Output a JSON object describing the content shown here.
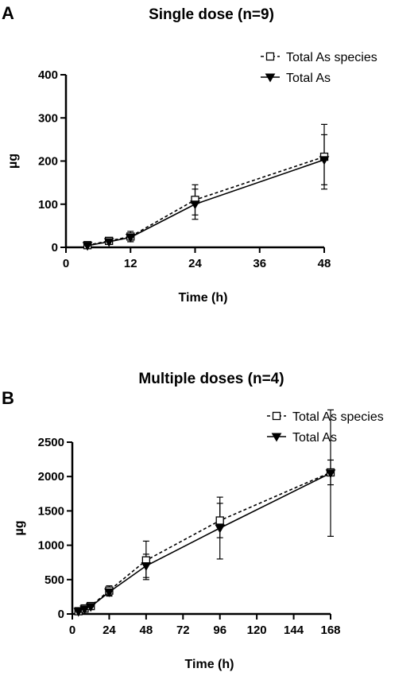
{
  "chart_data": [
    {
      "type": "line",
      "panel": "A",
      "title": "Single dose (n=9)",
      "xlabel": "Time (h)",
      "ylabel": "µg",
      "xlim": [
        0,
        48
      ],
      "ylim": [
        0,
        400
      ],
      "xticks": [
        0,
        12,
        24,
        36,
        48
      ],
      "yticks": [
        0,
        100,
        200,
        300,
        400
      ],
      "legend_position": "top-right",
      "grid": false,
      "series": [
        {
          "name": "Total As species",
          "marker": "open-square",
          "line": "dashed",
          "x": [
            4,
            8,
            12,
            24,
            48
          ],
          "y": [
            5,
            15,
            25,
            110,
            210
          ],
          "err": [
            8,
            6,
            12,
            35,
            75
          ]
        },
        {
          "name": "Total As",
          "marker": "filled-down-triangle",
          "line": "solid",
          "x": [
            4,
            8,
            12,
            24,
            48
          ],
          "y": [
            4,
            13,
            23,
            100,
            203
          ],
          "err": [
            6,
            5,
            10,
            35,
            58
          ]
        }
      ]
    },
    {
      "type": "line",
      "panel": "B",
      "title": "Multiple doses (n=4)",
      "xlabel": "Time (h)",
      "ylabel": "µg",
      "xlim": [
        0,
        168
      ],
      "ylim": [
        0,
        2500
      ],
      "xticks": [
        0,
        24,
        48,
        72,
        96,
        120,
        144,
        168
      ],
      "yticks": [
        0,
        500,
        1000,
        1500,
        2000,
        2500
      ],
      "legend_position": "top-right",
      "grid": false,
      "series": [
        {
          "name": "Total As species",
          "marker": "open-square",
          "line": "dashed",
          "x": [
            4,
            8,
            12,
            24,
            48,
            96,
            168
          ],
          "y": [
            40,
            80,
            115,
            340,
            780,
            1360,
            2060
          ],
          "err": [
            20,
            25,
            30,
            70,
            280,
            250,
            180
          ]
        },
        {
          "name": "Total As",
          "marker": "filled-down-triangle",
          "line": "solid",
          "x": [
            4,
            8,
            12,
            24,
            48,
            96,
            168
          ],
          "y": [
            35,
            70,
            105,
            320,
            700,
            1250,
            2050
          ],
          "err": [
            15,
            20,
            25,
            60,
            170,
            450,
            920
          ]
        }
      ]
    }
  ]
}
